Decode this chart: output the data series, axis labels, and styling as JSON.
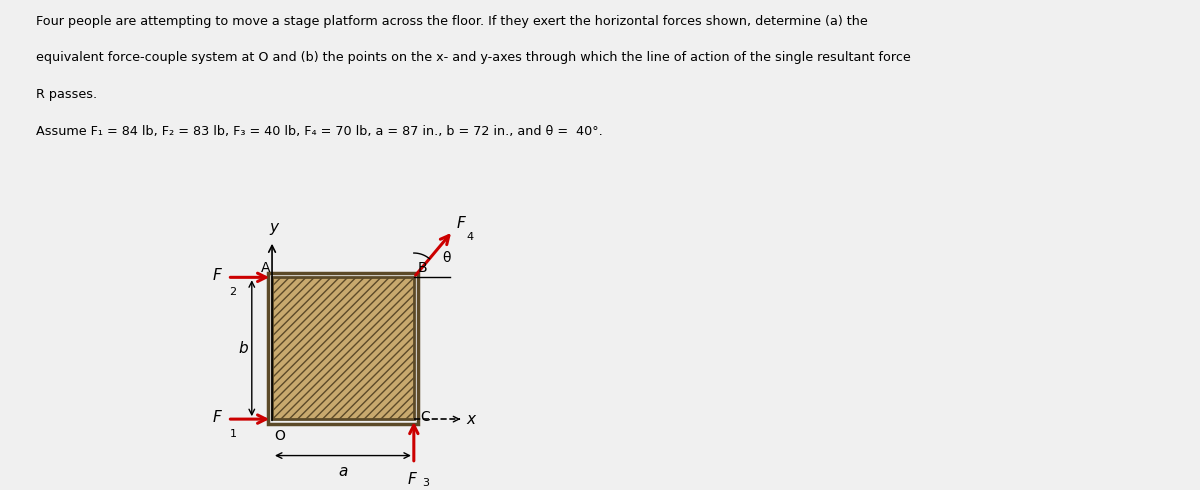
{
  "title_lines": [
    "Four people are attempting to move a stage platform across the floor. If they exert the horizontal forces shown, determine (a) the",
    "equivalent force-couple system at O and (b) the points on the x- and y-axes through which the line of action of the single resultant force",
    "R passes.",
    "Assume F₁ = 84 lb, F₂ = 83 lb, F₃ = 40 lb, F₄ = 70 lb, a = 87 in., b = 72 in., and θ =  40°."
  ],
  "bg_color": "#f0f0f0",
  "rect_fill": "#c8a96e",
  "rect_edge": "#5c4a28",
  "arrow_color": "#cc0000",
  "text_color": "#000000",
  "theta_deg": 40,
  "F1_label": "F",
  "F1_sub": "1",
  "F2_label": "F",
  "F2_sub": "2",
  "F3_label": "F",
  "F3_sub": "3",
  "F4_label": "F",
  "F4_sub": "4",
  "b_label": "b",
  "a_label": "a",
  "O_label": "O",
  "A_label": "A",
  "B_label": "B",
  "C_label": "C",
  "theta_label": "θ",
  "x_label": "x",
  "y_label": "y"
}
